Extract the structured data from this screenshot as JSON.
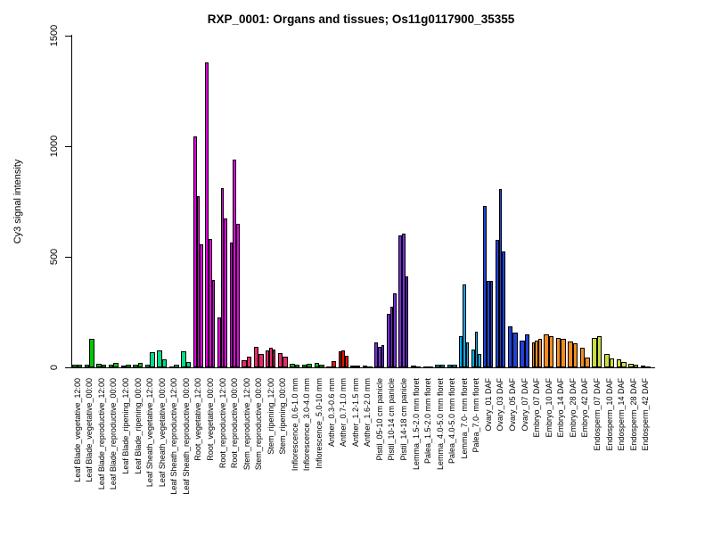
{
  "title": "RXP_0001: Organs and tissues; Os11g0117900_35355",
  "chart_data": {
    "type": "bar",
    "title": "RXP_0001: Organs and tissues; Os11g0117900_35355",
    "xlabel": "",
    "ylabel": "Cy3 signal intensity",
    "ylim": [
      0,
      1500
    ],
    "yticks": [
      0,
      500,
      1000,
      1500
    ],
    "grid": false,
    "legend": "none",
    "bar_style": "grouped replicates, black outline, white background",
    "groups": [
      {
        "label": "Leaf Blade_vegetative_12:00",
        "color": "#00C800",
        "values": [
          11,
          13
        ]
      },
      {
        "label": "Leaf Blade_vegetative_00:00",
        "color": "#00C800",
        "values": [
          13,
          130
        ]
      },
      {
        "label": "Leaf Blade_reproductive_12:00",
        "color": "#00C800",
        "values": [
          16,
          11
        ]
      },
      {
        "label": "Leaf Blade_reproductive_00:00",
        "color": "#00C800",
        "values": [
          11,
          19
        ]
      },
      {
        "label": "Leaf Blade_ripening_12:00",
        "color": "#00C800",
        "values": [
          10,
          12
        ]
      },
      {
        "label": "Leaf Blade_ripening_00:00",
        "color": "#00C800",
        "values": [
          13,
          19
        ]
      },
      {
        "label": "Leaf Sheath_vegetative_12:00",
        "color": "#00DC8C",
        "values": [
          13,
          70
        ]
      },
      {
        "label": "Leaf Sheath_vegetative_00:00",
        "color": "#00DC8C",
        "values": [
          75,
          36
        ]
      },
      {
        "label": "Leaf Sheath_reproductive_12:00",
        "color": "#00DC8C",
        "values": [
          5,
          13
        ]
      },
      {
        "label": "Leaf Sheath_reproductive_00:00",
        "color": "#00DC8C",
        "values": [
          71,
          25
        ]
      },
      {
        "label": "Root_vegetative_12:00",
        "color": "#E600E6",
        "values": [
          1045,
          775,
          555
        ]
      },
      {
        "label": "Root_vegetative_00:00",
        "color": "#E600E6",
        "values": [
          1380,
          580,
          395
        ]
      },
      {
        "label": "Root_reproductive_12:00",
        "color": "#E600E6",
        "values": [
          225,
          810,
          675
        ]
      },
      {
        "label": "Root_reproductive_00:00",
        "color": "#E600E6",
        "values": [
          565,
          940,
          650
        ]
      },
      {
        "label": "Stem_reproductive_12:00",
        "color": "#E62A68",
        "values": [
          34,
          47
        ]
      },
      {
        "label": "Stem_reproductive_00:00",
        "color": "#E62A68",
        "values": [
          94,
          60
        ]
      },
      {
        "label": "Stem_ripening_12:00",
        "color": "#E62A68",
        "values": [
          78,
          87,
          81
        ]
      },
      {
        "label": "Stem_ripening_00:00",
        "color": "#E62A68",
        "values": [
          65,
          47
        ]
      },
      {
        "label": "Inflorescence_0.6-1.0 mm",
        "color": "#00C800",
        "values": [
          16,
          13
        ]
      },
      {
        "label": "Inflorescence_3.0-4.0 mm",
        "color": "#00C800",
        "values": [
          11,
          16
        ]
      },
      {
        "label": "Inflorescence_5.0-10 mm",
        "color": "#00C800",
        "values": [
          19,
          13
        ]
      },
      {
        "label": "Anther_0.3-0.6 mm",
        "color": "#EE1100",
        "values": [
          5,
          30
        ]
      },
      {
        "label": "Anther_0.7-1.0 mm",
        "color": "#EE1100",
        "values": [
          74,
          78,
          54
        ]
      },
      {
        "label": "Anther_1.2-1.5 mm",
        "color": "#EE1100",
        "values": [
          7,
          7
        ]
      },
      {
        "label": "Anther_1.6-2.0 mm",
        "color": "#EE1100",
        "values": [
          8,
          5
        ]
      },
      {
        "label": "Pistil_05-10 cm panicle",
        "color": "#7A2BE0",
        "values": [
          114,
          91,
          101
        ]
      },
      {
        "label": "Pistil_10-14 cm panicle",
        "color": "#7A2BE0",
        "values": [
          242,
          275,
          333
        ]
      },
      {
        "label": "Pistil_14-18 cm panicle",
        "color": "#7A2BE0",
        "values": [
          595,
          605,
          410
        ]
      },
      {
        "label": "Lemma_1.5-2.0 mm floret",
        "color": "#00B3B3",
        "values": [
          7,
          5
        ]
      },
      {
        "label": "Palea_1.5-2.0 mm floret",
        "color": "#00B3B3",
        "values": [
          5,
          4
        ]
      },
      {
        "label": "Lemma_4.0-5.0 mm floret",
        "color": "#00B3B3",
        "values": [
          11,
          11
        ]
      },
      {
        "label": "Palea_4.0-5.0 mm floret",
        "color": "#00B3B3",
        "values": [
          13,
          11
        ]
      },
      {
        "label": "Lemma_7.0- mm floret",
        "color": "#00AEEF",
        "values": [
          141,
          374,
          114
        ]
      },
      {
        "label": "Palea_7.0- mm floret",
        "color": "#00AEEF",
        "values": [
          81,
          161,
          60
        ]
      },
      {
        "label": "Ovary_01 DAF",
        "color": "#2142D6",
        "values": [
          730,
          390,
          390
        ]
      },
      {
        "label": "Ovary_03 DAF",
        "color": "#2142D6",
        "values": [
          575,
          805,
          525
        ]
      },
      {
        "label": "Ovary_05 DAF",
        "color": "#2142D6",
        "values": [
          185,
          158
        ]
      },
      {
        "label": "Ovary_07 DAF",
        "color": "#2142D6",
        "values": [
          120,
          148
        ]
      },
      {
        "label": "Embryo_07 DAF",
        "color": "#F28C1E",
        "values": [
          113,
          122,
          129
        ]
      },
      {
        "label": "Embryo_10 DAF",
        "color": "#F28C1E",
        "values": [
          149,
          143
        ]
      },
      {
        "label": "Embryo_14 DAF",
        "color": "#F28C1E",
        "values": [
          132,
          128
        ]
      },
      {
        "label": "Embryo_28 DAF",
        "color": "#F28C1E",
        "values": [
          118,
          108
        ]
      },
      {
        "label": "Embryo_42 DAF",
        "color": "#F28C1E",
        "values": [
          90,
          45
        ]
      },
      {
        "label": "Endosperm_07 DAF",
        "color": "#CCDC3C",
        "values": [
          135,
          142
        ]
      },
      {
        "label": "Endosperm_10 DAF",
        "color": "#CCDC3C",
        "values": [
          62,
          40
        ]
      },
      {
        "label": "Endosperm_14 DAF",
        "color": "#CCDC3C",
        "values": [
          35,
          25
        ]
      },
      {
        "label": "Endosperm_28 DAF",
        "color": "#CCDC3C",
        "values": [
          18,
          12
        ]
      },
      {
        "label": "Endosperm_42 DAF",
        "color": "#CCDC3C",
        "values": [
          8,
          5
        ]
      }
    ]
  }
}
